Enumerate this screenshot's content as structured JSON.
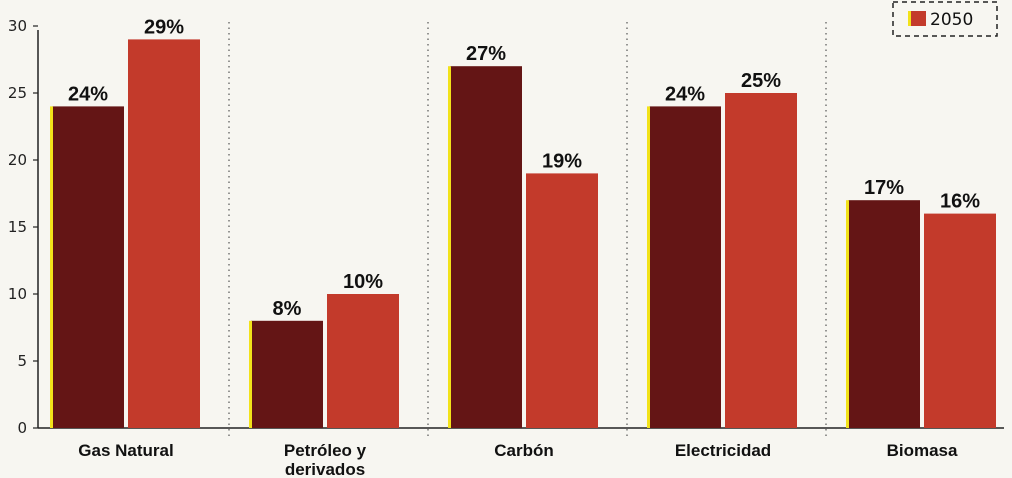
{
  "chart_data": {
    "type": "bar",
    "categories": [
      "Gas Natural",
      "Petróleo y derivados",
      "Carbón",
      "Electricidad",
      "Biomasa"
    ],
    "category_lines": [
      [
        "Gas Natural"
      ],
      [
        "Petróleo y",
        "derivados"
      ],
      [
        "Carbón"
      ],
      [
        "Electricidad"
      ],
      [
        "Biomasa"
      ]
    ],
    "series": [
      {
        "values": [
          24,
          8,
          27,
          24,
          17
        ],
        "labels": [
          "24%",
          "8%",
          "27%",
          "24%",
          "17%"
        ],
        "color": "#641515"
      },
      {
        "name": "2050",
        "values": [
          29,
          10,
          19,
          25,
          16
        ],
        "labels": [
          "29%",
          "10%",
          "19%",
          "25%",
          "16%"
        ],
        "color": "#c33a2b"
      }
    ],
    "yticks": [
      "0",
      "5",
      "10",
      "15",
      "20",
      "25",
      "30"
    ],
    "ylim": [
      0,
      31
    ],
    "grid": "vertical dotted separators between categories",
    "legend": {
      "position": "top-right",
      "items": [
        "2050"
      ]
    },
    "accent_edge": "#f2e21a"
  }
}
